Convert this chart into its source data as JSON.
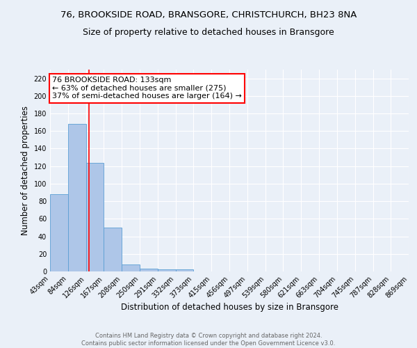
{
  "title": "76, BROOKSIDE ROAD, BRANSGORE, CHRISTCHURCH, BH23 8NA",
  "subtitle": "Size of property relative to detached houses in Bransgore",
  "xlabel": "Distribution of detached houses by size in Bransgore",
  "ylabel": "Number of detached properties",
  "footnote1": "Contains HM Land Registry data © Crown copyright and database right 2024.",
  "footnote2": "Contains public sector information licensed under the Open Government Licence v3.0.",
  "bar_edges": [
    43,
    84,
    126,
    167,
    208,
    250,
    291,
    332,
    373,
    415,
    456,
    497,
    539,
    580,
    621,
    663,
    704,
    745,
    787,
    828,
    869
  ],
  "bar_heights": [
    88,
    168,
    124,
    50,
    8,
    3,
    2,
    2,
    0,
    0,
    0,
    0,
    0,
    0,
    0,
    0,
    0,
    0,
    0,
    0
  ],
  "bar_color": "#aec6e8",
  "bar_edgecolor": "#5a9fd4",
  "tick_labels": [
    "43sqm",
    "84sqm",
    "126sqm",
    "167sqm",
    "208sqm",
    "250sqm",
    "291sqm",
    "332sqm",
    "373sqm",
    "415sqm",
    "456sqm",
    "497sqm",
    "539sqm",
    "580sqm",
    "621sqm",
    "663sqm",
    "704sqm",
    "745sqm",
    "787sqm",
    "828sqm",
    "869sqm"
  ],
  "property_line_x": 133,
  "annotation_text": "76 BROOKSIDE ROAD: 133sqm\n← 63% of detached houses are smaller (275)\n37% of semi-detached houses are larger (164) →",
  "annotation_box_color": "white",
  "annotation_box_edgecolor": "red",
  "vline_color": "red",
  "ylim": [
    0,
    230
  ],
  "yticks": [
    0,
    20,
    40,
    60,
    80,
    100,
    120,
    140,
    160,
    180,
    200,
    220
  ],
  "background_color": "#eaf0f8",
  "grid_color": "white",
  "title_fontsize": 9.5,
  "subtitle_fontsize": 9,
  "annotation_fontsize": 8,
  "ylabel_fontsize": 8.5,
  "xlabel_fontsize": 8.5,
  "tick_fontsize": 7,
  "footnote_fontsize": 6,
  "footnote_color": "#666666"
}
